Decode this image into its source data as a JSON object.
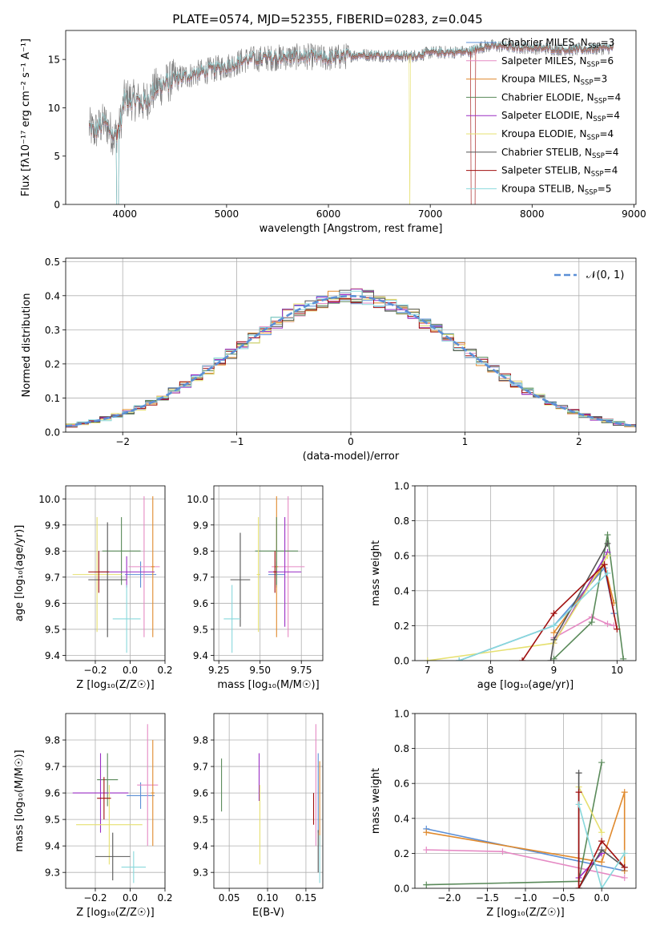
{
  "colors": {
    "Chabrier MILES": "#5b8fd6",
    "Salpeter MILES": "#e58ac4",
    "Kroupa MILES": "#e08a2e",
    "Chabrier ELODIE": "#5a8a5a",
    "Salpeter ELODIE": "#9a2ec4",
    "Kroupa ELODIE": "#e6e070",
    "Chabrier STELIB": "#555555",
    "Salpeter STELIB": "#a01010",
    "Kroupa STELIB": "#88d8dc"
  },
  "chart_data": [
    {
      "id": "spectrum",
      "type": "line",
      "title": "PLATE=0574, MJD=52355, FIBERID=0283, z=0.045",
      "xlabel": "wavelength [Angstrom, rest frame]",
      "ylabel": "Flux [fλ10⁻¹⁷ erg cm⁻² s⁻¹ A⁻¹]",
      "xlim": [
        3420,
        9020
      ],
      "ylim": [
        0,
        18
      ],
      "xticks": [
        4000,
        5000,
        6000,
        7000,
        8000,
        9000
      ],
      "yticks": [
        0,
        5,
        10,
        15
      ],
      "grid": false,
      "legend_position": "right",
      "x_range_data": [
        3650,
        8800
      ],
      "y_anchor_points": [
        [
          3650,
          8
        ],
        [
          3700,
          7.5
        ],
        [
          3800,
          8.5
        ],
        [
          3900,
          7
        ],
        [
          3950,
          8
        ],
        [
          4000,
          11
        ],
        [
          4200,
          10.5
        ],
        [
          4300,
          12
        ],
        [
          4500,
          13
        ],
        [
          4800,
          13.8
        ],
        [
          5000,
          14.3
        ],
        [
          5200,
          15
        ],
        [
          5500,
          15.2
        ],
        [
          5800,
          15.3
        ],
        [
          6000,
          15.1
        ],
        [
          6300,
          15.5
        ],
        [
          6600,
          15.4
        ],
        [
          6800,
          15.3
        ],
        [
          7000,
          15.7
        ],
        [
          7400,
          15.8
        ],
        [
          7500,
          16.3
        ],
        [
          7600,
          16.4
        ],
        [
          8000,
          16.2
        ],
        [
          8400,
          16.0
        ],
        [
          8800,
          16.2
        ]
      ],
      "legend": [
        {
          "name": "Chabrier MILES",
          "nssp": "3"
        },
        {
          "name": "Salpeter MILES",
          "nssp": "6"
        },
        {
          "name": "Kroupa MILES",
          "nssp": "3"
        },
        {
          "name": "Chabrier ELODIE",
          "nssp": "4"
        },
        {
          "name": "Salpeter ELODIE",
          "nssp": "4"
        },
        {
          "name": "Kroupa ELODIE",
          "nssp": "4"
        },
        {
          "name": "Chabrier STELIB",
          "nssp": "4"
        },
        {
          "name": "Salpeter STELIB",
          "nssp": "4"
        },
        {
          "name": "Kroupa STELIB",
          "nssp": "5"
        }
      ]
    },
    {
      "id": "residuals",
      "type": "line",
      "xlabel": "(data-model)/error",
      "ylabel": "Normed distribution",
      "xlim": [
        -2.5,
        2.5
      ],
      "ylim": [
        0,
        0.51
      ],
      "xticks": [
        -2,
        -1,
        0,
        1,
        2
      ],
      "yticks": [
        0.0,
        0.1,
        0.2,
        0.3,
        0.4,
        0.5
      ],
      "grid": true,
      "legend_position": "top-right",
      "legend": [
        {
          "name": "𝒩(0, 1)"
        }
      ],
      "bin_width": 0.1,
      "series_note": "step histograms, one per model"
    },
    {
      "id": "age_vs_Z",
      "type": "scatter",
      "xlabel": "Z [log₁₀(Z/Z☉)]",
      "ylabel": "age [log₁₀(age/yr)]",
      "xlim": [
        -0.37,
        0.2
      ],
      "ylim": [
        9.38,
        10.05
      ],
      "xticks": [
        -0.2,
        0.0,
        0.2
      ],
      "yticks": [
        9.4,
        9.5,
        9.6,
        9.7,
        9.8,
        9.9,
        10.0
      ],
      "grid": true,
      "points": [
        {
          "model": "Chabrier MILES",
          "x": 0.06,
          "y": 9.71,
          "xerr": 0.09,
          "yerr": 0.05
        },
        {
          "model": "Salpeter MILES",
          "x": 0.08,
          "y": 9.74,
          "xerr": 0.09,
          "yerr": 0.27
        },
        {
          "model": "Kroupa MILES",
          "x": 0.13,
          "y": 9.74,
          "xerr": 0.01,
          "yerr": 0.27
        },
        {
          "model": "Chabrier ELODIE",
          "x": -0.05,
          "y": 9.8,
          "xerr": 0.11,
          "yerr": 0.13
        },
        {
          "model": "Salpeter ELODIE",
          "x": -0.02,
          "y": 9.72,
          "xerr": 0.16,
          "yerr": 0.06
        },
        {
          "model": "Kroupa ELODIE",
          "x": -0.19,
          "y": 9.71,
          "xerr": 0.14,
          "yerr": 0.22
        },
        {
          "model": "Chabrier STELIB",
          "x": -0.13,
          "y": 9.69,
          "xerr": 0.11,
          "yerr": 0.22
        },
        {
          "model": "Salpeter STELIB",
          "x": -0.18,
          "y": 9.72,
          "xerr": 0.06,
          "yerr": 0.08
        },
        {
          "model": "Kroupa STELIB",
          "x": -0.02,
          "y": 9.54,
          "xerr": 0.08,
          "yerr": 0.13
        }
      ]
    },
    {
      "id": "age_vs_mass",
      "type": "scatter",
      "xlabel": "mass [log₁₀(M/M☉)]",
      "ylabel": "",
      "xlim": [
        9.22,
        9.88
      ],
      "ylim": [
        9.38,
        10.05
      ],
      "xticks": [
        9.25,
        9.5,
        9.75
      ],
      "yticks": [
        9.4,
        9.5,
        9.6,
        9.7,
        9.8,
        9.9,
        10.0
      ],
      "grid": true,
      "points": [
        {
          "model": "Chabrier MILES",
          "x": 9.6,
          "y": 9.71,
          "xerr": 0.05,
          "yerr": 0.05
        },
        {
          "model": "Salpeter MILES",
          "x": 9.67,
          "y": 9.74,
          "xerr": 0.1,
          "yerr": 0.27
        },
        {
          "model": "Kroupa MILES",
          "x": 9.6,
          "y": 9.74,
          "xerr": 0.01,
          "yerr": 0.27
        },
        {
          "model": "Chabrier ELODIE",
          "x": 9.6,
          "y": 9.8,
          "xerr": 0.13,
          "yerr": 0.13
        },
        {
          "model": "Salpeter ELODIE",
          "x": 9.65,
          "y": 9.72,
          "xerr": 0.1,
          "yerr": 0.21
        },
        {
          "model": "Kroupa ELODIE",
          "x": 9.49,
          "y": 9.71,
          "xerr": 0.01,
          "yerr": 0.22
        },
        {
          "model": "Chabrier STELIB",
          "x": 9.38,
          "y": 9.69,
          "xerr": 0.06,
          "yerr": 0.18
        },
        {
          "model": "Salpeter STELIB",
          "x": 9.59,
          "y": 9.72,
          "xerr": 0.01,
          "yerr": 0.08
        },
        {
          "model": "Kroupa STELIB",
          "x": 9.33,
          "y": 9.54,
          "xerr": 0.05,
          "yerr": 0.13
        }
      ]
    },
    {
      "id": "weight_vs_age",
      "type": "line",
      "xlabel": "age [log₁₀(age/yr)]",
      "ylabel": "mass weight",
      "xlim": [
        6.8,
        10.3
      ],
      "ylim": [
        0,
        1.0
      ],
      "xticks": [
        7,
        8,
        9,
        10
      ],
      "yticks": [
        0.0,
        0.2,
        0.4,
        0.6,
        0.8,
        1.0
      ],
      "grid": true,
      "series": [
        {
          "model": "Chabrier MILES",
          "points": [
            [
              7.5,
              0.0
            ],
            [
              9.0,
              0.2
            ],
            [
              9.8,
              0.53
            ],
            [
              9.95,
              0.27
            ]
          ]
        },
        {
          "model": "Salpeter MILES",
          "points": [
            [
              9.0,
              0.13
            ],
            [
              9.6,
              0.25
            ],
            [
              9.85,
              0.21
            ],
            [
              9.95,
              0.2
            ]
          ]
        },
        {
          "model": "Kroupa MILES",
          "points": [
            [
              9.0,
              0.16
            ],
            [
              9.8,
              0.55
            ],
            [
              9.95,
              0.33
            ]
          ]
        },
        {
          "model": "Chabrier ELODIE",
          "points": [
            [
              9.0,
              0.01
            ],
            [
              9.6,
              0.22
            ],
            [
              9.85,
              0.72
            ],
            [
              10.1,
              0.01
            ]
          ]
        },
        {
          "model": "Salpeter ELODIE",
          "points": [
            [
              9.0,
              0.1
            ],
            [
              9.85,
              0.62
            ]
          ]
        },
        {
          "model": "Kroupa ELODIE",
          "points": [
            [
              7.0,
              0.0
            ],
            [
              9.0,
              0.1
            ],
            [
              9.85,
              0.6
            ]
          ]
        },
        {
          "model": "Chabrier STELIB",
          "points": [
            [
              8.95,
              0.0
            ],
            [
              9.0,
              0.12
            ],
            [
              9.85,
              0.67
            ]
          ]
        },
        {
          "model": "Salpeter STELIB",
          "points": [
            [
              8.5,
              0.0
            ],
            [
              9.0,
              0.27
            ],
            [
              9.8,
              0.55
            ],
            [
              10.0,
              0.18
            ]
          ]
        },
        {
          "model": "Kroupa STELIB",
          "points": [
            [
              7.5,
              0.0
            ],
            [
              9.0,
              0.2
            ],
            [
              9.85,
              0.5
            ]
          ]
        }
      ]
    },
    {
      "id": "mass_vs_Z",
      "type": "scatter",
      "xlabel": "Z [log₁₀(Z/Z☉)]",
      "ylabel": "mass [log₁₀(M/M☉)]",
      "xlim": [
        -0.37,
        0.2
      ],
      "ylim": [
        9.24,
        9.9
      ],
      "xticks": [
        -0.2,
        0.0,
        0.2
      ],
      "yticks": [
        9.3,
        9.4,
        9.5,
        9.6,
        9.7,
        9.8
      ],
      "grid": true,
      "points": [
        {
          "model": "Chabrier MILES",
          "x": 0.06,
          "y": 9.59,
          "xerr": 0.08,
          "yerr": 0.05
        },
        {
          "model": "Salpeter MILES",
          "x": 0.1,
          "y": 9.63,
          "xerr": 0.06,
          "yerr": 0.23
        },
        {
          "model": "Kroupa MILES",
          "x": 0.13,
          "y": 9.6,
          "xerr": 0.01,
          "yerr": 0.2
        },
        {
          "model": "Chabrier ELODIE",
          "x": -0.13,
          "y": 9.65,
          "xerr": 0.06,
          "yerr": 0.1
        },
        {
          "model": "Salpeter ELODIE",
          "x": -0.17,
          "y": 9.6,
          "xerr": 0.16,
          "yerr": 0.15
        },
        {
          "model": "Kroupa ELODIE",
          "x": -0.12,
          "y": 9.48,
          "xerr": 0.19,
          "yerr": 0.15
        },
        {
          "model": "Chabrier STELIB",
          "x": -0.1,
          "y": 9.36,
          "xerr": 0.1,
          "yerr": 0.09
        },
        {
          "model": "Salpeter STELIB",
          "x": -0.15,
          "y": 9.58,
          "xerr": 0.04,
          "yerr": 0.08
        },
        {
          "model": "Kroupa STELIB",
          "x": 0.02,
          "y": 9.32,
          "xerr": 0.07,
          "yerr": 0.06
        }
      ]
    },
    {
      "id": "mass_vs_ebv",
      "type": "scatter",
      "xlabel": "E(B-V)",
      "ylabel": "",
      "xlim": [
        0.03,
        0.172
      ],
      "ylim": [
        9.24,
        9.9
      ],
      "xticks": [
        0.05,
        0.1,
        0.15
      ],
      "yticks": [
        9.3,
        9.4,
        9.5,
        9.6,
        9.7,
        9.8
      ],
      "grid": true,
      "points": [
        {
          "model": "Chabrier MILES",
          "x": 0.166,
          "y": 9.6,
          "xerr": 0.0,
          "yerr": 0.15
        },
        {
          "model": "Salpeter MILES",
          "x": 0.163,
          "y": 9.63,
          "xerr": 0.0,
          "yerr": 0.23
        },
        {
          "model": "Kroupa MILES",
          "x": 0.168,
          "y": 9.56,
          "xerr": 0.0,
          "yerr": 0.16
        },
        {
          "model": "Chabrier ELODIE",
          "x": 0.04,
          "y": 9.63,
          "xerr": 0.0,
          "yerr": 0.1
        },
        {
          "model": "Salpeter ELODIE",
          "x": 0.089,
          "y": 9.66,
          "xerr": 0.0,
          "yerr": 0.09
        },
        {
          "model": "Kroupa ELODIE",
          "x": 0.09,
          "y": 9.48,
          "xerr": 0.0,
          "yerr": 0.15
        },
        {
          "model": "Chabrier STELIB",
          "x": 0.166,
          "y": 9.38,
          "xerr": 0.0,
          "yerr": 0.08
        },
        {
          "model": "Salpeter STELIB",
          "x": 0.16,
          "y": 9.54,
          "xerr": 0.0,
          "yerr": 0.06
        },
        {
          "model": "Kroupa STELIB",
          "x": 0.168,
          "y": 9.35,
          "xerr": 0.0,
          "yerr": 0.09
        }
      ]
    },
    {
      "id": "weight_vs_Z",
      "type": "line",
      "xlabel": "Z [log₁₀(Z/Z☉)]",
      "ylabel": "mass weight",
      "xlim": [
        -2.45,
        0.45
      ],
      "ylim": [
        0,
        1.0
      ],
      "xticks": [
        -2.0,
        -1.5,
        -1.0,
        -0.5,
        0.0
      ],
      "yticks": [
        0.0,
        0.2,
        0.4,
        0.6,
        0.8,
        1.0
      ],
      "grid": true,
      "series": [
        {
          "model": "Chabrier MILES",
          "points": [
            [
              -2.3,
              0.34
            ],
            [
              0.3,
              0.1
            ]
          ]
        },
        {
          "model": "Salpeter MILES",
          "points": [
            [
              -2.3,
              0.22
            ],
            [
              -1.3,
              0.21
            ],
            [
              0.3,
              0.06
            ]
          ]
        },
        {
          "model": "Kroupa MILES",
          "points": [
            [
              -2.3,
              0.32
            ],
            [
              0.0,
              0.15
            ],
            [
              0.3,
              0.55
            ],
            [
              0.3,
              0.1
            ]
          ]
        },
        {
          "model": "Chabrier ELODIE",
          "points": [
            [
              -2.3,
              0.02
            ],
            [
              -0.3,
              0.04
            ],
            [
              0.0,
              0.72
            ]
          ]
        },
        {
          "model": "Salpeter ELODIE",
          "points": [
            [
              -0.3,
              0.06
            ],
            [
              0.0,
              0.2
            ]
          ]
        },
        {
          "model": "Kroupa ELODIE",
          "points": [
            [
              -0.3,
              0.58
            ],
            [
              0.0,
              0.32
            ]
          ]
        },
        {
          "model": "Chabrier STELIB",
          "points": [
            [
              -0.3,
              0.66
            ],
            [
              -0.3,
              0.0
            ],
            [
              0.0,
              0.22
            ],
            [
              0.3,
              0.12
            ]
          ]
        },
        {
          "model": "Salpeter STELIB",
          "points": [
            [
              -0.3,
              0.55
            ],
            [
              -0.3,
              0.0
            ],
            [
              0.0,
              0.27
            ],
            [
              0.3,
              0.12
            ]
          ]
        },
        {
          "model": "Kroupa STELIB",
          "points": [
            [
              -0.3,
              0.48
            ],
            [
              0.0,
              0.0
            ],
            [
              0.3,
              0.2
            ]
          ]
        }
      ]
    }
  ]
}
